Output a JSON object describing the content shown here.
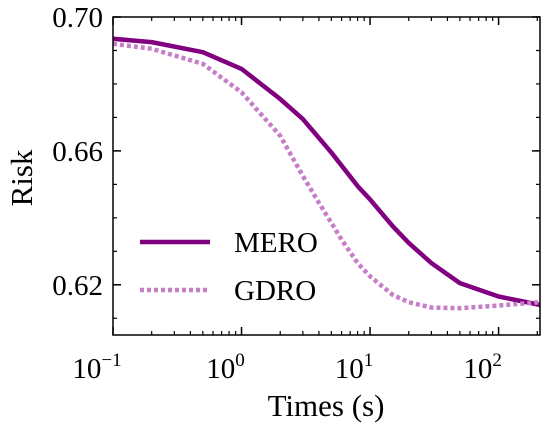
{
  "chart_data": {
    "type": "line",
    "xlabel": "Times (s)",
    "ylabel": "Risk",
    "x_scale": "log",
    "xlim": [
      0.1,
      210
    ],
    "ylim": [
      0.605,
      0.7
    ],
    "x_ticks": [
      {
        "value": 0.1,
        "base": "10",
        "exp": "−1"
      },
      {
        "value": 1,
        "base": "10",
        "exp": "0"
      },
      {
        "value": 10,
        "base": "10",
        "exp": "1"
      },
      {
        "value": 100,
        "base": "10",
        "exp": "2"
      }
    ],
    "y_ticks": [
      {
        "value": 0.62,
        "label": "0.62"
      },
      {
        "value": 0.66,
        "label": "0.66"
      },
      {
        "value": 0.7,
        "label": "0.70"
      }
    ],
    "legend_position": "lower-left",
    "series": [
      {
        "name": "MERO",
        "color": "#800080",
        "style": "solid",
        "points": [
          [
            0.1,
            0.6935
          ],
          [
            0.2,
            0.6925
          ],
          [
            0.5,
            0.6895
          ],
          [
            1,
            0.6845
          ],
          [
            2,
            0.6755
          ],
          [
            3,
            0.6695
          ],
          [
            5,
            0.6595
          ],
          [
            8,
            0.6495
          ],
          [
            10,
            0.6455
          ],
          [
            15,
            0.6375
          ],
          [
            20,
            0.6325
          ],
          [
            30,
            0.6265
          ],
          [
            50,
            0.6205
          ],
          [
            100,
            0.6165
          ],
          [
            210,
            0.614
          ]
        ]
      },
      {
        "name": "GDRO",
        "color": "#c77dc7",
        "style": "dotted",
        "points": [
          [
            0.1,
            0.692
          ],
          [
            0.2,
            0.6905
          ],
          [
            0.5,
            0.686
          ],
          [
            1,
            0.6775
          ],
          [
            2,
            0.6645
          ],
          [
            3,
            0.6525
          ],
          [
            4,
            0.6445
          ],
          [
            5,
            0.6385
          ],
          [
            6,
            0.6335
          ],
          [
            8,
            0.6265
          ],
          [
            10,
            0.6225
          ],
          [
            15,
            0.617
          ],
          [
            20,
            0.6148
          ],
          [
            30,
            0.6132
          ],
          [
            50,
            0.613
          ],
          [
            100,
            0.6138
          ],
          [
            210,
            0.6148
          ]
        ]
      }
    ]
  }
}
